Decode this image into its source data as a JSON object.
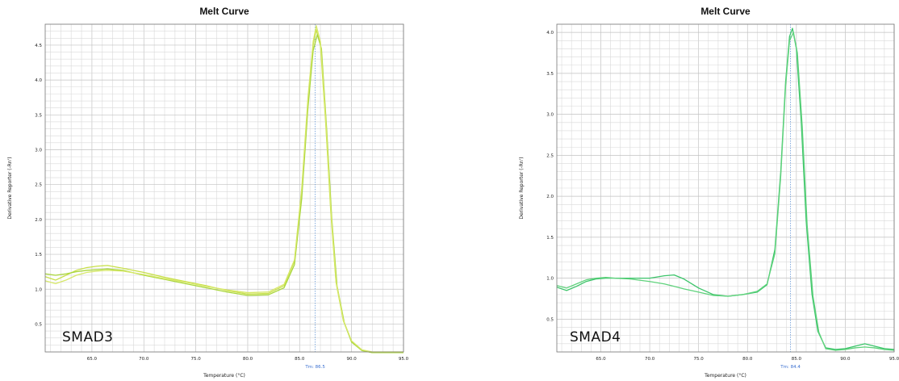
{
  "chart_data": [
    {
      "type": "line",
      "title": "Melt Curve",
      "xlabel": "Temperature (°C)",
      "ylabel": "Derivative Reporter (-Rn')",
      "xlim": [
        60.5,
        95.0
      ],
      "ylim": [
        0.1,
        4.8
      ],
      "x_ticks": [
        "65.0",
        "70.0",
        "75.0",
        "80.0",
        "85.0",
        "90.0",
        "95.0"
      ],
      "y_ticks": [
        "0.5",
        "1.0",
        "1.5",
        "2.0",
        "2.5",
        "3.0",
        "3.5",
        "4.0",
        "4.5"
      ],
      "annotation": "SMAD3",
      "tm_label": "Tm: 86.5",
      "tm_value": 86.5,
      "grid": true,
      "series": [
        {
          "color": "#c8e04a",
          "x": [
            60.5,
            61.5,
            62.5,
            63.5,
            64.5,
            65.5,
            66.5,
            68,
            70,
            72,
            74,
            76,
            78,
            80,
            82,
            83.5,
            84.5,
            85.2,
            85.8,
            86.3,
            86.6,
            87.0,
            87.5,
            88.0,
            88.5,
            89.2,
            90,
            91,
            92,
            93,
            94,
            95
          ],
          "y": [
            1.18,
            1.13,
            1.2,
            1.27,
            1.31,
            1.33,
            1.34,
            1.3,
            1.24,
            1.17,
            1.11,
            1.05,
            0.98,
            0.93,
            0.94,
            1.05,
            1.4,
            2.4,
            3.7,
            4.5,
            4.72,
            4.5,
            3.4,
            2.1,
            1.1,
            0.55,
            0.25,
            0.12,
            0.09,
            0.09,
            0.09,
            0.09
          ]
        },
        {
          "color": "#a9d63c",
          "x": [
            60.5,
            61.5,
            62.5,
            63.5,
            64.5,
            65.5,
            66.5,
            68,
            70,
            72,
            74,
            76,
            78,
            80,
            82,
            83.5,
            84.5,
            85.2,
            85.8,
            86.3,
            86.7,
            87.1,
            87.6,
            88.1,
            88.6,
            89.3,
            90,
            91,
            92,
            93,
            94,
            95
          ],
          "y": [
            1.22,
            1.2,
            1.22,
            1.25,
            1.27,
            1.28,
            1.29,
            1.27,
            1.2,
            1.14,
            1.08,
            1.02,
            0.96,
            0.91,
            0.92,
            1.02,
            1.35,
            2.3,
            3.6,
            4.42,
            4.65,
            4.45,
            3.3,
            2.0,
            1.05,
            0.52,
            0.24,
            0.12,
            0.09,
            0.09,
            0.09,
            0.09
          ]
        },
        {
          "color": "#d7e86a",
          "x": [
            60.5,
            61.5,
            62.5,
            63.5,
            64.5,
            65.5,
            66.5,
            68,
            70,
            72,
            74,
            76,
            78,
            80,
            82,
            83.5,
            84.5,
            85.2,
            85.8,
            86.3,
            86.6,
            87.0,
            87.5,
            88.0,
            88.5,
            89.2,
            90,
            91,
            92,
            93,
            94,
            95
          ],
          "y": [
            1.12,
            1.08,
            1.13,
            1.2,
            1.24,
            1.26,
            1.27,
            1.26,
            1.21,
            1.15,
            1.1,
            1.04,
            0.99,
            0.95,
            0.96,
            1.07,
            1.42,
            2.45,
            3.75,
            4.55,
            4.78,
            4.55,
            3.45,
            2.15,
            1.12,
            0.56,
            0.26,
            0.13,
            0.1,
            0.1,
            0.1,
            0.1
          ]
        }
      ]
    },
    {
      "type": "line",
      "title": "Melt Curve",
      "xlabel": "Temperature (°C)",
      "ylabel": "Derivative Reporter (-Rn')",
      "xlim": [
        60.5,
        95.0
      ],
      "ylim": [
        0.1,
        4.1
      ],
      "x_ticks": [
        "65.0",
        "70.0",
        "75.0",
        "80.0",
        "85.0",
        "90.0",
        "95.0"
      ],
      "y_ticks": [
        "0.5",
        "1.0",
        "1.5",
        "2.0",
        "2.5",
        "3.0",
        "3.5",
        "4.0"
      ],
      "annotation": "SMAD4",
      "tm_label": "Tm: 84.4",
      "tm_value": 84.4,
      "grid": true,
      "series": [
        {
          "color": "#3cc46a",
          "x": [
            60.5,
            61.5,
            62.5,
            63.5,
            64.5,
            65.5,
            66.5,
            68,
            70,
            71.5,
            72.5,
            73.5,
            75,
            76.5,
            78,
            79.5,
            81,
            82,
            82.8,
            83.4,
            83.9,
            84.3,
            84.6,
            85.0,
            85.5,
            86.0,
            86.6,
            87.2,
            88,
            89,
            90,
            91,
            92,
            93,
            94,
            95
          ],
          "y": [
            0.89,
            0.85,
            0.9,
            0.96,
            0.99,
            1.0,
            1.0,
            1.0,
            1.0,
            1.03,
            1.04,
            0.99,
            0.88,
            0.8,
            0.78,
            0.8,
            0.83,
            0.92,
            1.35,
            2.3,
            3.4,
            3.95,
            4.05,
            3.8,
            2.9,
            1.7,
            0.8,
            0.35,
            0.15,
            0.13,
            0.14,
            0.17,
            0.2,
            0.17,
            0.14,
            0.13
          ]
        },
        {
          "color": "#5fd27c",
          "x": [
            60.5,
            61.5,
            62.5,
            63.5,
            64.5,
            65.5,
            66.5,
            68,
            70,
            71.5,
            72.5,
            73.5,
            75,
            76.5,
            78,
            79.5,
            81,
            82,
            82.8,
            83.4,
            83.9,
            84.3,
            84.7,
            85.1,
            85.6,
            86.1,
            86.7,
            87.3,
            88,
            89,
            90,
            91,
            92,
            93,
            94,
            95
          ],
          "y": [
            0.91,
            0.88,
            0.93,
            0.98,
            1.0,
            1.01,
            1.0,
            0.99,
            0.96,
            0.93,
            0.9,
            0.87,
            0.83,
            0.79,
            0.78,
            0.8,
            0.84,
            0.93,
            1.3,
            2.25,
            3.35,
            3.9,
            4.0,
            3.75,
            2.85,
            1.65,
            0.78,
            0.34,
            0.14,
            0.12,
            0.13,
            0.15,
            0.16,
            0.15,
            0.13,
            0.12
          ]
        }
      ]
    }
  ]
}
